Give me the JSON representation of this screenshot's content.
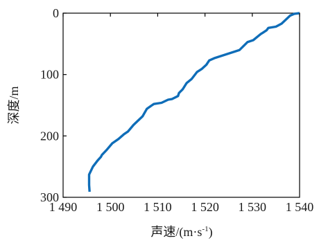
{
  "chart_data": {
    "type": "line",
    "title": "",
    "xlabel": "声速/(m·s",
    "xlabel_sup": "-1",
    "xlabel_tail": ")",
    "ylabel": "深度/m",
    "xlim": [
      1490,
      1540
    ],
    "ylim": [
      0,
      300
    ],
    "y_inverted": true,
    "x_axis_position": "top",
    "x_tick_labels_position": "bottom",
    "grid": false,
    "xticks": [
      1490,
      1500,
      1510,
      1520,
      1530,
      1540
    ],
    "xtick_labels": [
      "1 490",
      "1 500",
      "1 510",
      "1 520",
      "1 530",
      "1 540"
    ],
    "yticks": [
      0,
      100,
      200,
      300
    ],
    "ytick_labels": [
      "0",
      "100",
      "200",
      "300"
    ],
    "line_color": "#0f6db8",
    "series": [
      {
        "x": [
          1540.0,
          1538.9,
          1538.0,
          1536.2,
          1535.0,
          1533.4,
          1533.0,
          1532.2,
          1531.8,
          1531.0,
          1530.2,
          1529.0,
          1527.3,
          1522.1,
          1520.9,
          1520.3,
          1519.3,
          1518.3,
          1517.2,
          1516.1,
          1515.3,
          1514.5,
          1514.3,
          1513.0,
          1512.2,
          1510.8,
          1509.2,
          1508.6,
          1507.7,
          1506.8,
          1504.9,
          1503.7,
          1502.9,
          1501.7,
          1500.4,
          1499.2,
          1498.2,
          1498.0,
          1497.3,
          1496.3,
          1495.5,
          1495.5,
          1495.6
        ],
        "y": [
          0,
          1,
          4,
          17,
          22,
          24,
          28,
          32,
          34,
          39,
          44,
          47,
          60,
          73,
          77,
          84,
          91,
          96,
          107,
          114,
          124,
          130,
          135,
          140,
          141,
          146,
          148,
          151,
          156,
          168,
          182,
          193,
          197,
          205,
          212,
          223,
          231,
          234,
          240,
          250,
          263,
          280,
          291
        ]
      }
    ]
  }
}
